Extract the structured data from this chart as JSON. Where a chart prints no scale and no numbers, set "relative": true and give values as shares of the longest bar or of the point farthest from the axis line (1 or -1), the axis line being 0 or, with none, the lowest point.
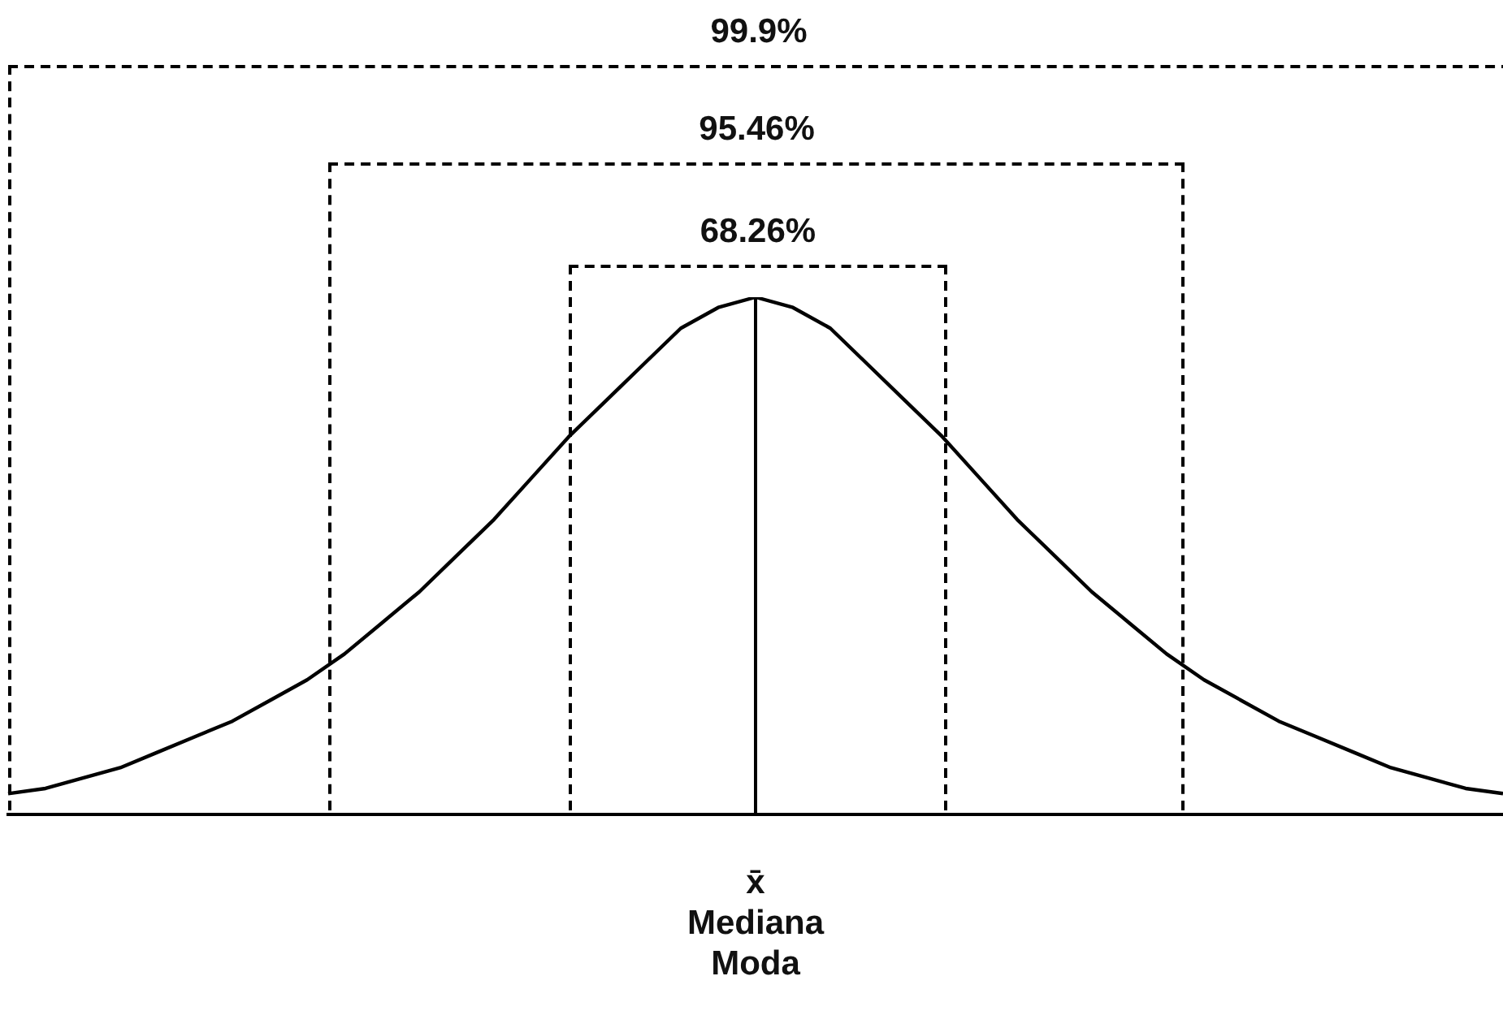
{
  "chart_data": {
    "type": "line",
    "relative": true,
    "xlabel": "x̄\nMediana\nModa",
    "tick_labels": false,
    "grid": false,
    "legend": false,
    "marker": "none",
    "line_style": "solid",
    "categories": [
      null,
      null,
      null,
      null,
      null,
      null,
      null,
      null,
      null,
      null,
      null,
      null,
      null,
      null,
      null,
      null,
      null,
      null,
      null,
      null,
      null,
      null,
      null,
      null,
      null,
      null,
      null,
      null,
      null,
      null,
      null,
      null,
      null,
      null,
      null,
      null,
      null,
      null,
      null,
      null,
      null
    ],
    "annotations": [
      "99.9%",
      "95.46%",
      "68.26%"
    ],
    "series": [
      {
        "color": "#000000",
        "values": [
          0.04,
          0.05,
          0.07,
          0.09,
          0.12,
          0.15,
          0.18,
          0.22,
          0.26,
          0.31,
          0.37,
          0.43,
          0.5,
          0.57,
          0.65,
          0.73,
          0.8,
          0.87,
          0.94,
          0.98,
          1,
          0.98,
          0.94,
          0.87,
          0.8,
          0.73,
          0.65,
          0.57,
          0.5,
          0.43,
          0.37,
          0.31,
          0.26,
          0.22,
          0.18,
          0.15,
          0.12,
          0.09,
          0.07,
          0.05,
          0.04
        ]
      }
    ]
  }
}
